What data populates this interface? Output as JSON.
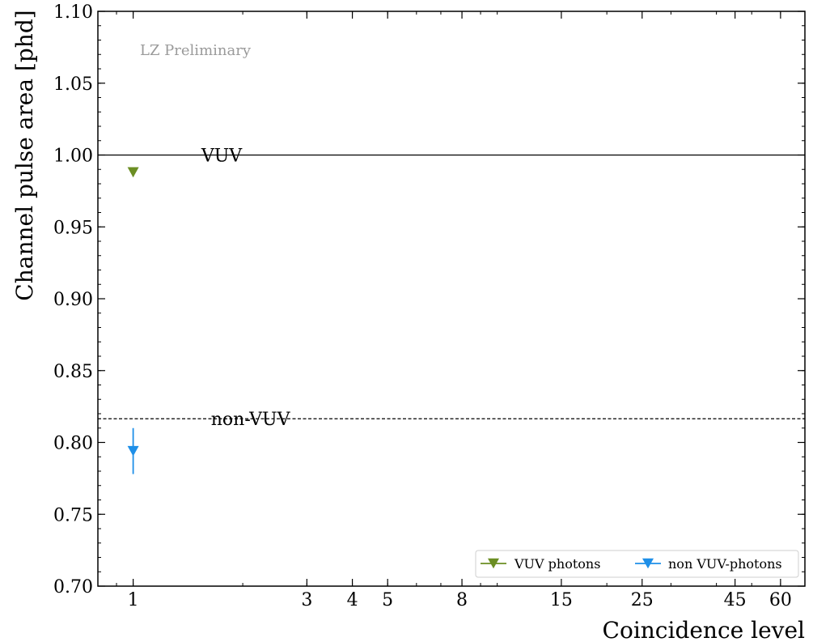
{
  "chart_data": {
    "type": "scatter",
    "annotation": "LZ Preliminary",
    "xlabel": "Coincidence level",
    "ylabel": "Channel pulse area [phd]",
    "xscale": "log",
    "xlim": [
      0.8,
      70
    ],
    "ylim": [
      0.7,
      1.1
    ],
    "xticks": [
      1,
      3,
      4,
      5,
      8,
      15,
      25,
      45,
      60
    ],
    "yticks": [
      "0.70",
      "0.75",
      "0.80",
      "0.85",
      "0.90",
      "0.95",
      "1.00",
      "1.05",
      "1.10"
    ],
    "reference_lines": [
      {
        "label": "VUV",
        "y": 1.0,
        "style": "solid",
        "label_x": 1.75
      },
      {
        "label": "non-VUV",
        "y": 0.8165,
        "style": "dashed",
        "label_x": 2.1
      }
    ],
    "series": [
      {
        "name": "VUV photons",
        "color": "#6b8e23",
        "marker": "triangle-down",
        "points": [
          {
            "x": 1,
            "y": 0.988,
            "yerr": 0.003
          }
        ]
      },
      {
        "name": "non VUV-photons",
        "color": "#1e8fe8",
        "marker": "triangle-down",
        "points": [
          {
            "x": 1,
            "y": 0.794,
            "yerr": 0.016
          }
        ]
      }
    ],
    "legend_position": "lower-right",
    "grid": false
  }
}
